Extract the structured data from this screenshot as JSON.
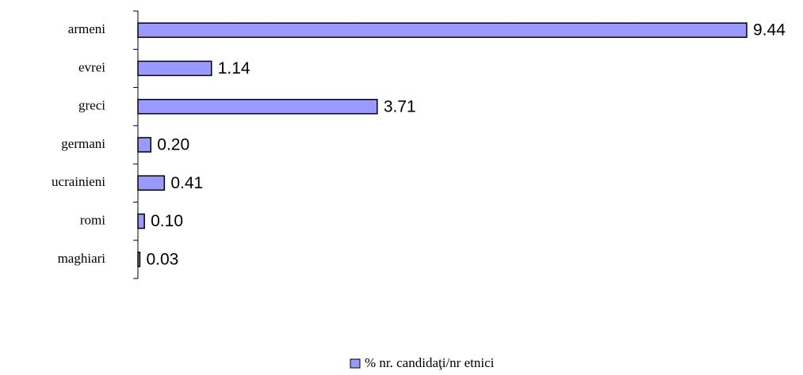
{
  "chart_data": {
    "type": "bar",
    "orientation": "horizontal",
    "categories": [
      "armeni",
      "evrei",
      "greci",
      "germani",
      "ucrainieni",
      "romi",
      "maghiari"
    ],
    "series": [
      {
        "name": "% nr. candidaţi/nr etnici",
        "color": "#9999ff",
        "values": [
          9.44,
          1.14,
          3.71,
          0.2,
          0.41,
          0.1,
          0.03
        ],
        "value_labels": [
          "9.44",
          "1.14",
          "3.71",
          "0.20",
          "0.41",
          "0.10",
          "0.03"
        ]
      }
    ],
    "legend": "bottom"
  }
}
